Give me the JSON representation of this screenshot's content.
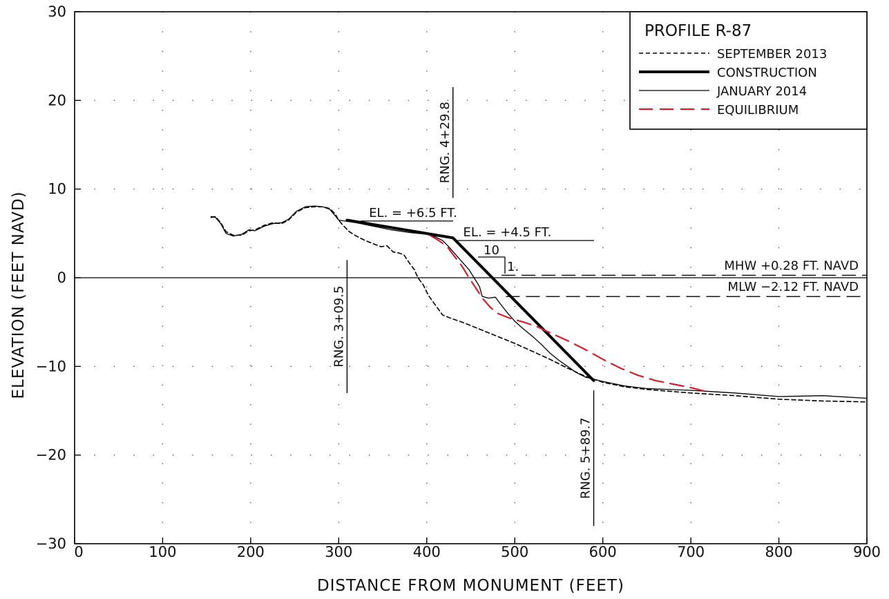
{
  "chart_data": {
    "type": "line",
    "title": "PROFILE R-87",
    "xlabel": "DISTANCE FROM MONUMENT (FEET)",
    "ylabel": "ELEVATION (FEET NAVD)",
    "xlim": [
      0,
      900
    ],
    "ylim": [
      -30,
      30
    ],
    "x_ticks": [
      0,
      100,
      200,
      300,
      400,
      500,
      600,
      700,
      800,
      900
    ],
    "y_ticks": [
      -30,
      -20,
      -10,
      0,
      10,
      20,
      30
    ],
    "x_tick_labels": [
      "0",
      "100",
      "200",
      "300",
      "400",
      "500",
      "600",
      "700",
      "800",
      "900"
    ],
    "y_tick_labels": [
      "−30",
      "−20",
      "−10",
      "0",
      "10",
      "20",
      "30"
    ],
    "grid": "dotted",
    "legend_position": "top-right",
    "series": [
      {
        "name": "SEPTEMBER 2013",
        "style": "short-dash",
        "color": "#000000",
        "points": [
          [
            155,
            6.8
          ],
          [
            160,
            6.9
          ],
          [
            166,
            6.2
          ],
          [
            172,
            5.2
          ],
          [
            180,
            4.8
          ],
          [
            190,
            4.8
          ],
          [
            198,
            5.3
          ],
          [
            205,
            5.4
          ],
          [
            215,
            5.9
          ],
          [
            225,
            6.2
          ],
          [
            235,
            6.1
          ],
          [
            243,
            6.5
          ],
          [
            252,
            7.4
          ],
          [
            262,
            7.9
          ],
          [
            272,
            8.0
          ],
          [
            282,
            8.0
          ],
          [
            290,
            7.8
          ],
          [
            296,
            7.2
          ],
          [
            300,
            6.5
          ],
          [
            305,
            5.9
          ],
          [
            312,
            5.2
          ],
          [
            320,
            4.7
          ],
          [
            330,
            4.2
          ],
          [
            340,
            3.8
          ],
          [
            348,
            3.5
          ],
          [
            355,
            3.6
          ],
          [
            362,
            2.9
          ],
          [
            368,
            2.8
          ],
          [
            374,
            2.6
          ],
          [
            380,
            1.7
          ],
          [
            386,
            0.9
          ],
          [
            390,
            0.0
          ],
          [
            396,
            -0.8
          ],
          [
            402,
            -2.0
          ],
          [
            410,
            -3.1
          ],
          [
            418,
            -4.2
          ],
          [
            428,
            -4.6
          ],
          [
            440,
            -5.0
          ],
          [
            460,
            -5.8
          ],
          [
            480,
            -6.6
          ],
          [
            500,
            -7.4
          ],
          [
            520,
            -8.3
          ],
          [
            540,
            -9.2
          ],
          [
            560,
            -10.2
          ],
          [
            580,
            -11.1
          ],
          [
            600,
            -11.8
          ],
          [
            625,
            -12.3
          ],
          [
            650,
            -12.6
          ],
          [
            700,
            -13.0
          ],
          [
            750,
            -13.3
          ],
          [
            800,
            -13.7
          ],
          [
            850,
            -13.9
          ],
          [
            900,
            -14.0
          ]
        ]
      },
      {
        "name": "CONSTRUCTION",
        "style": "thick-solid",
        "color": "#000000",
        "points": [
          [
            309.5,
            6.5
          ],
          [
            429.8,
            4.5
          ],
          [
            589.7,
            -11.6
          ]
        ]
      },
      {
        "name": "JANUARY 2014",
        "style": "thin-solid",
        "color": "#000000",
        "points": [
          [
            155,
            6.9
          ],
          [
            160,
            6.8
          ],
          [
            166,
            6.1
          ],
          [
            172,
            5.0
          ],
          [
            180,
            4.7
          ],
          [
            190,
            4.9
          ],
          [
            198,
            5.4
          ],
          [
            205,
            5.3
          ],
          [
            215,
            5.8
          ],
          [
            225,
            6.1
          ],
          [
            235,
            6.2
          ],
          [
            243,
            6.6
          ],
          [
            252,
            7.5
          ],
          [
            262,
            8.0
          ],
          [
            272,
            8.1
          ],
          [
            282,
            8.0
          ],
          [
            290,
            7.7
          ],
          [
            296,
            7.0
          ],
          [
            300,
            6.5
          ],
          [
            320,
            6.2
          ],
          [
            340,
            5.8
          ],
          [
            360,
            5.4
          ],
          [
            380,
            5.1
          ],
          [
            400,
            4.9
          ],
          [
            410,
            4.6
          ],
          [
            418,
            4.2
          ],
          [
            425,
            3.5
          ],
          [
            432,
            2.7
          ],
          [
            440,
            1.8
          ],
          [
            448,
            0.9
          ],
          [
            455,
            -0.2
          ],
          [
            460,
            -1.0
          ],
          [
            463,
            -2.1
          ],
          [
            470,
            -2.3
          ],
          [
            478,
            -2.2
          ],
          [
            484,
            -3.0
          ],
          [
            492,
            -4.0
          ],
          [
            500,
            -4.9
          ],
          [
            510,
            -5.8
          ],
          [
            520,
            -6.6
          ],
          [
            530,
            -7.5
          ],
          [
            540,
            -8.5
          ],
          [
            550,
            -9.3
          ],
          [
            560,
            -10.0
          ],
          [
            570,
            -10.7
          ],
          [
            580,
            -11.2
          ],
          [
            600,
            -11.7
          ],
          [
            625,
            -12.2
          ],
          [
            650,
            -12.5
          ],
          [
            700,
            -12.7
          ],
          [
            750,
            -13.0
          ],
          [
            800,
            -13.4
          ],
          [
            850,
            -13.3
          ],
          [
            900,
            -13.6
          ]
        ]
      },
      {
        "name": "EQUILIBRIUM",
        "style": "long-dash",
        "color": "#d0202e",
        "points": [
          [
            405,
            4.7
          ],
          [
            412,
            4.3
          ],
          [
            418,
            3.9
          ],
          [
            424,
            3.4
          ],
          [
            430,
            2.6
          ],
          [
            440,
            1.3
          ],
          [
            448,
            0.0
          ],
          [
            456,
            -1.2
          ],
          [
            464,
            -2.4
          ],
          [
            472,
            -3.3
          ],
          [
            480,
            -4.0
          ],
          [
            495,
            -4.6
          ],
          [
            510,
            -5.0
          ],
          [
            525,
            -5.5
          ],
          [
            540,
            -6.2
          ],
          [
            560,
            -7.1
          ],
          [
            580,
            -8.1
          ],
          [
            600,
            -9.2
          ],
          [
            620,
            -10.2
          ],
          [
            640,
            -11.0
          ],
          [
            660,
            -11.6
          ],
          [
            680,
            -12.0
          ],
          [
            700,
            -12.4
          ],
          [
            720,
            -12.9
          ]
        ]
      }
    ],
    "reference_lines": [
      {
        "label": "MHW +0.28 FT. NAVD",
        "y": 0.28,
        "x_start": 485,
        "x_end": 900,
        "style": "long-dash"
      },
      {
        "label": "MLW −2.12 FT. NAVD",
        "y": -2.12,
        "x_start": 490,
        "x_end": 900,
        "style": "long-dash"
      }
    ],
    "annotations": {
      "range_markers": [
        {
          "label": "RNG. 3+09.5",
          "x": 309.5,
          "y_top": 2,
          "y_bottom": -13
        },
        {
          "label": "RNG. 4+29.8",
          "x": 429.8,
          "y_top": 21.5,
          "y_bottom": 9
        },
        {
          "label": "RNG. 5+89.7",
          "x": 589.7,
          "y_top": -12.7,
          "y_bottom": -28
        }
      ],
      "elevation_labels": [
        {
          "text": "EL.  =  +6.5  FT.",
          "x_start": 325,
          "x_end": 430,
          "y": 6.4
        },
        {
          "text": "EL.  =  +4.5  FT.",
          "x_start": 432,
          "x_end": 590,
          "y": 4.2
        }
      ],
      "slope": {
        "run": "10",
        "rise": "1."
      }
    }
  }
}
